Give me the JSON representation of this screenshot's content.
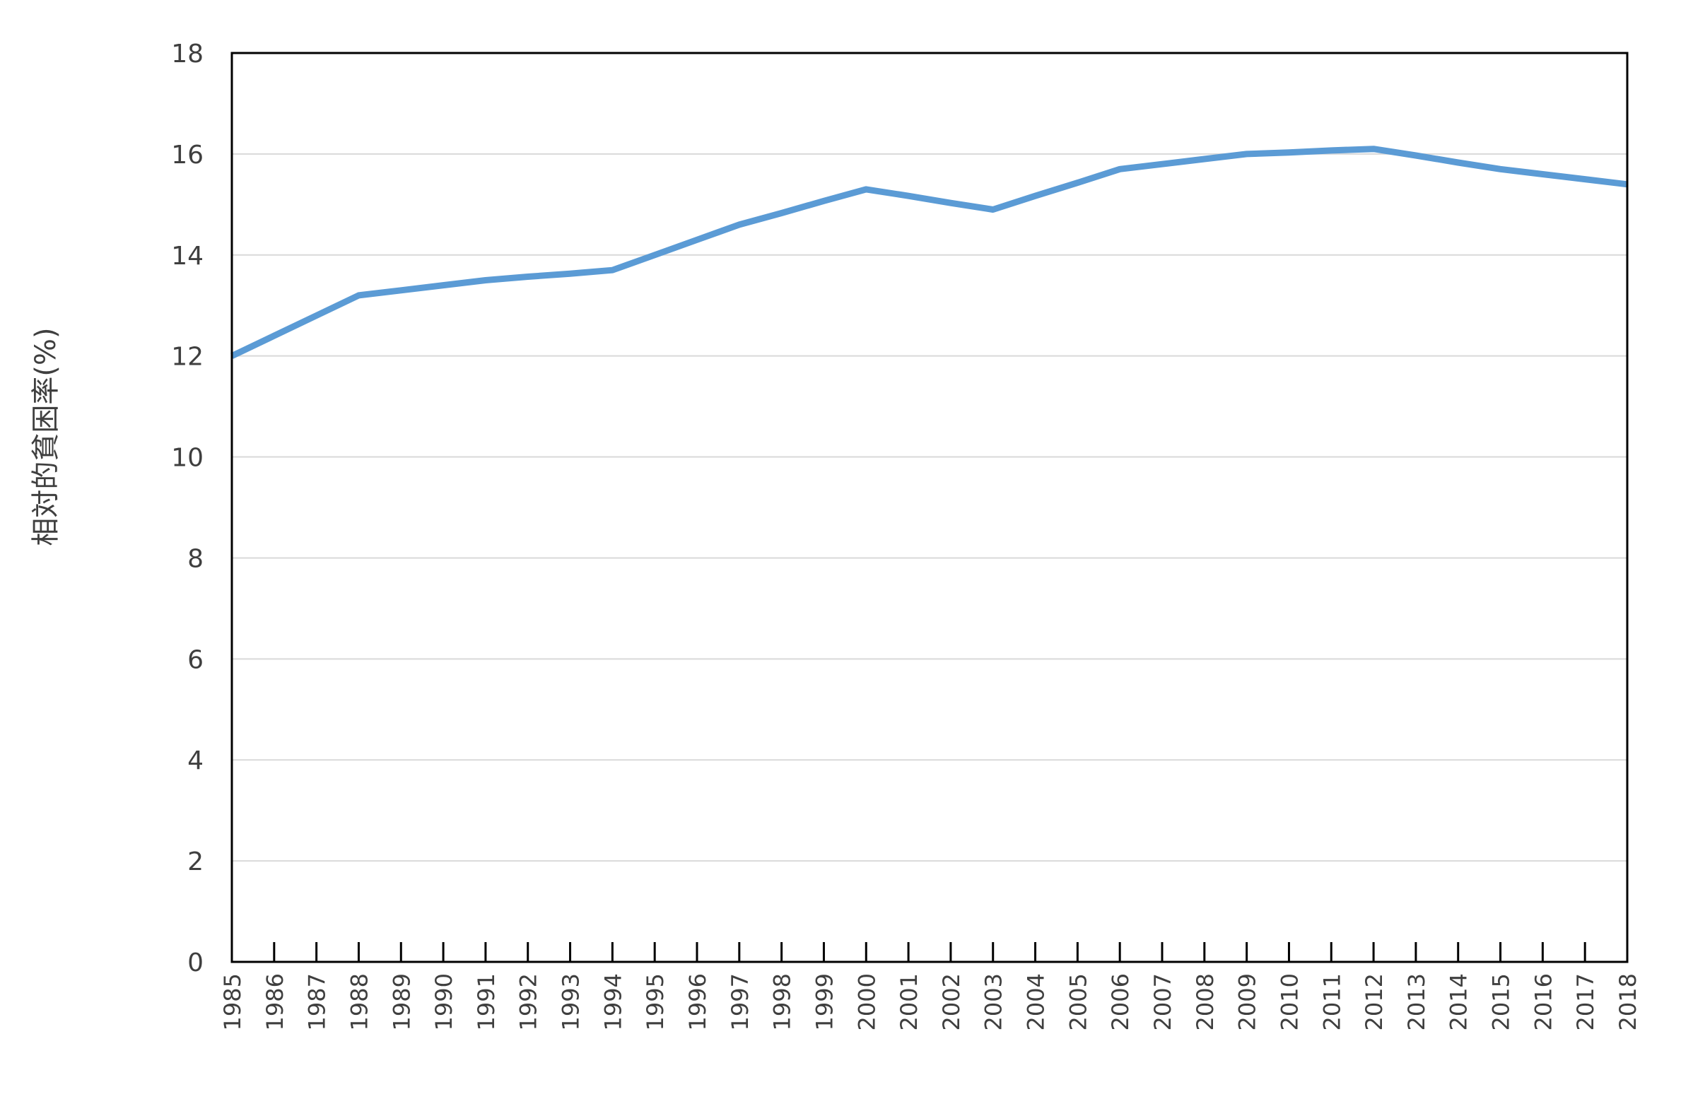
{
  "chart_data": {
    "type": "line",
    "title": "",
    "xlabel": "",
    "ylabel": "相対的貧困率(%)",
    "ylim": [
      0,
      18
    ],
    "yticks": [
      0,
      2,
      4,
      6,
      8,
      10,
      12,
      14,
      16,
      18
    ],
    "grid": true,
    "legend": "none",
    "colors": {
      "series": "#5b9bd5",
      "grid": "#d9d9d9",
      "axis": "#000000",
      "text": "#3f3f3f"
    },
    "x": [
      1985,
      1986,
      1987,
      1988,
      1989,
      1990,
      1991,
      1992,
      1993,
      1994,
      1995,
      1996,
      1997,
      1998,
      1999,
      2000,
      2001,
      2002,
      2003,
      2004,
      2005,
      2006,
      2007,
      2008,
      2009,
      2010,
      2011,
      2012,
      2013,
      2014,
      2015,
      2016,
      2017,
      2018
    ],
    "series": [
      {
        "values": [
          12.0,
          12.4,
          12.8,
          13.2,
          13.3,
          13.4,
          13.5,
          13.57,
          13.63,
          13.7,
          14.0,
          14.3,
          14.6,
          14.83,
          15.07,
          15.3,
          15.17,
          15.03,
          14.9,
          15.17,
          15.43,
          15.7,
          15.8,
          15.9,
          16.0,
          16.03,
          16.07,
          16.1,
          15.97,
          15.83,
          15.7,
          15.6,
          15.5,
          15.4
        ]
      }
    ]
  }
}
